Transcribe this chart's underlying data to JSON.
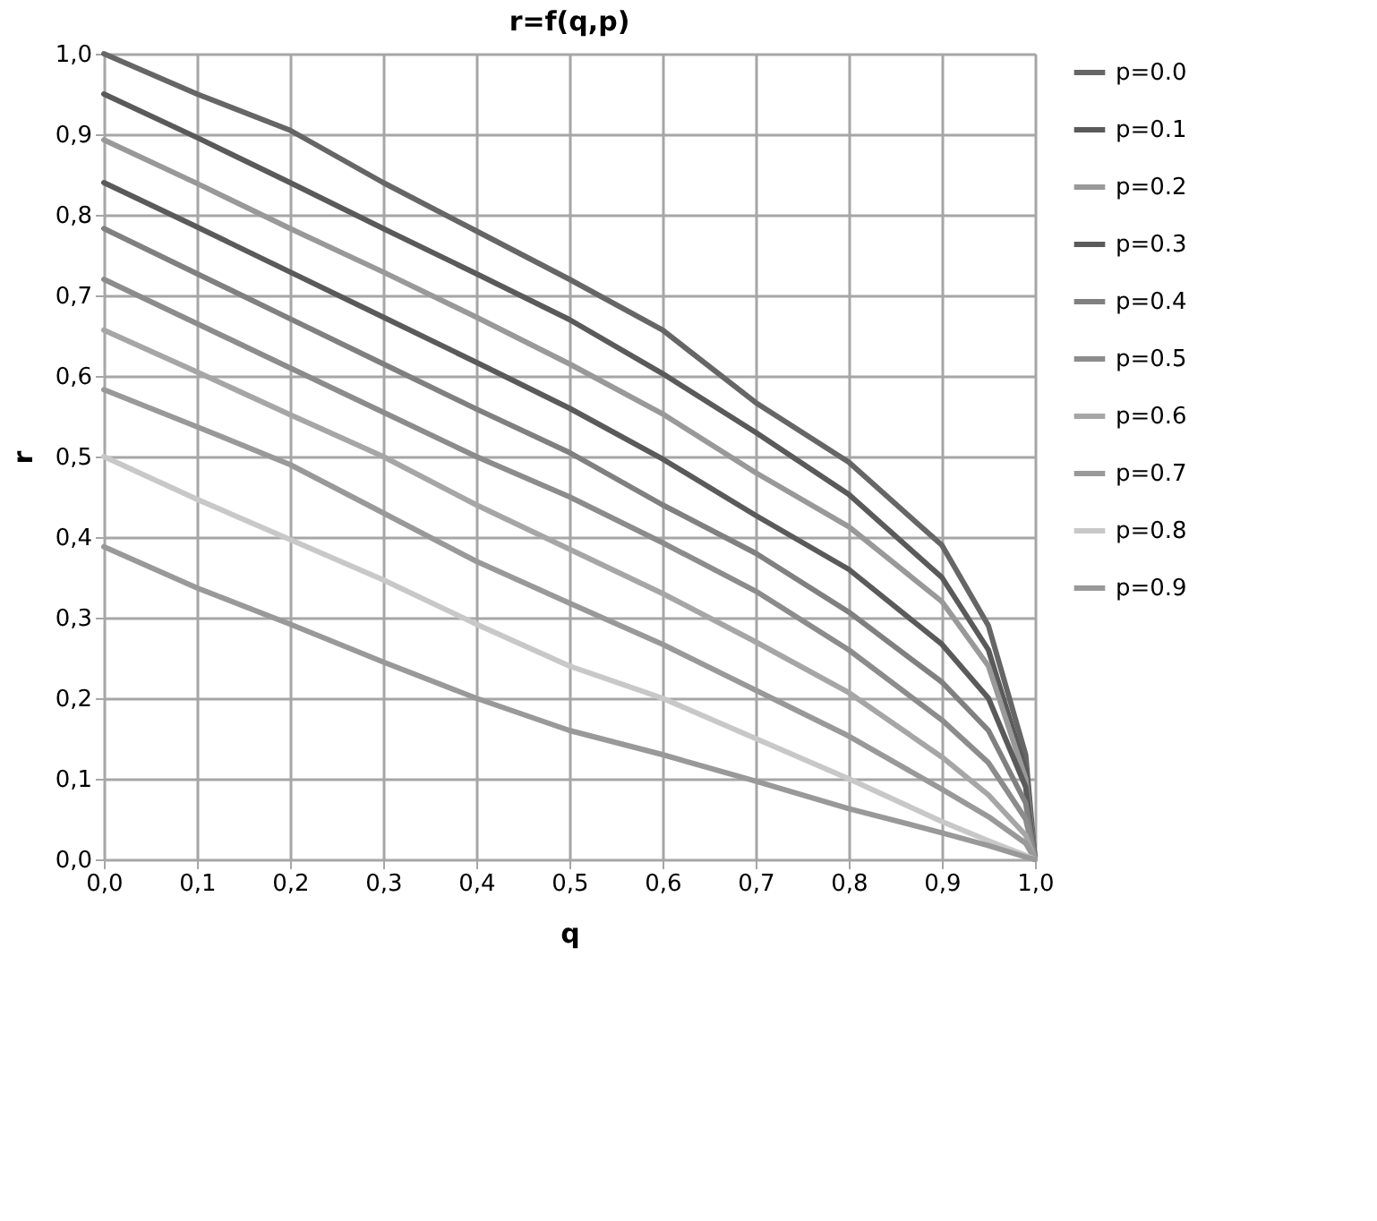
{
  "chart_data": {
    "type": "line",
    "title": "r=f(q,p)",
    "xlabel": "q",
    "ylabel": "r",
    "x": [
      0,
      0.1,
      0.2,
      0.3,
      0.4,
      0.5,
      0.6,
      0.7,
      0.8,
      0.9,
      0.95,
      0.99,
      1.0
    ],
    "series": [
      {
        "name": "p=0.0",
        "color": "#666666",
        "values": [
          1.0,
          0.95,
          0.905,
          0.84,
          0.78,
          0.72,
          0.657,
          0.567,
          0.493,
          0.39,
          0.29,
          0.13,
          0
        ]
      },
      {
        "name": "p=0.1",
        "color": "#5a5a5a",
        "values": [
          0.95,
          0.896,
          0.84,
          0.783,
          0.727,
          0.67,
          0.603,
          0.53,
          0.453,
          0.35,
          0.26,
          0.11,
          0
        ]
      },
      {
        "name": "p=0.2",
        "color": "#999999",
        "values": [
          0.893,
          0.839,
          0.783,
          0.729,
          0.673,
          0.615,
          0.553,
          0.48,
          0.413,
          0.32,
          0.24,
          0.1,
          0
        ]
      },
      {
        "name": "p=0.3",
        "color": "#5a5a5a",
        "values": [
          0.84,
          0.785,
          0.729,
          0.673,
          0.617,
          0.56,
          0.497,
          0.427,
          0.36,
          0.267,
          0.2,
          0.09,
          0
        ]
      },
      {
        "name": "p=0.4",
        "color": "#808080",
        "values": [
          0.783,
          0.727,
          0.671,
          0.615,
          0.559,
          0.505,
          0.44,
          0.38,
          0.307,
          0.22,
          0.16,
          0.07,
          0
        ]
      },
      {
        "name": "p=0.5",
        "color": "#8c8c8c",
        "values": [
          0.72,
          0.665,
          0.61,
          0.555,
          0.5,
          0.45,
          0.393,
          0.333,
          0.26,
          0.173,
          0.12,
          0.05,
          0
        ]
      },
      {
        "name": "p=0.6",
        "color": "#a6a6a6",
        "values": [
          0.657,
          0.605,
          0.552,
          0.5,
          0.44,
          0.385,
          0.33,
          0.27,
          0.207,
          0.127,
          0.08,
          0.03,
          0
        ]
      },
      {
        "name": "p=0.7",
        "color": "#999999",
        "values": [
          0.583,
          0.537,
          0.49,
          0.43,
          0.37,
          0.318,
          0.267,
          0.21,
          0.153,
          0.087,
          0.053,
          0.02,
          0
        ]
      },
      {
        "name": "p=0.8",
        "color": "#c8c8c8",
        "values": [
          0.5,
          0.447,
          0.397,
          0.347,
          0.292,
          0.24,
          0.2,
          0.15,
          0.1,
          0.047,
          0.023,
          0.005,
          0
        ]
      },
      {
        "name": "p=0.9",
        "color": "#999999",
        "values": [
          0.388,
          0.337,
          0.292,
          0.245,
          0.2,
          0.16,
          0.13,
          0.097,
          0.063,
          0.033,
          0.017,
          0.003,
          0
        ]
      }
    ],
    "xlim": [
      0,
      1.0
    ],
    "ylim": [
      0,
      1.0
    ],
    "xticks": [
      {
        "value": 0,
        "label": "0,0"
      },
      {
        "value": 0.1,
        "label": "0,1"
      },
      {
        "value": 0.2,
        "label": "0,2"
      },
      {
        "value": 0.3,
        "label": "0,3"
      },
      {
        "value": 0.4,
        "label": "0,4"
      },
      {
        "value": 0.5,
        "label": "0,5"
      },
      {
        "value": 0.6,
        "label": "0,6"
      },
      {
        "value": 0.7,
        "label": "0,7"
      },
      {
        "value": 0.8,
        "label": "0,8"
      },
      {
        "value": 0.9,
        "label": "0,9"
      },
      {
        "value": 1.0,
        "label": "1,0"
      }
    ],
    "yticks": [
      {
        "value": 0,
        "label": "0,0"
      },
      {
        "value": 0.1,
        "label": "0,1"
      },
      {
        "value": 0.2,
        "label": "0,2"
      },
      {
        "value": 0.3,
        "label": "0,3"
      },
      {
        "value": 0.4,
        "label": "0,4"
      },
      {
        "value": 0.5,
        "label": "0,5"
      },
      {
        "value": 0.6,
        "label": "0,6"
      },
      {
        "value": 0.7,
        "label": "0,7"
      },
      {
        "value": 0.8,
        "label": "0,8"
      },
      {
        "value": 0.9,
        "label": "0,9"
      },
      {
        "value": 1.0,
        "label": "1,0"
      }
    ],
    "grid": true,
    "legend": "right"
  }
}
